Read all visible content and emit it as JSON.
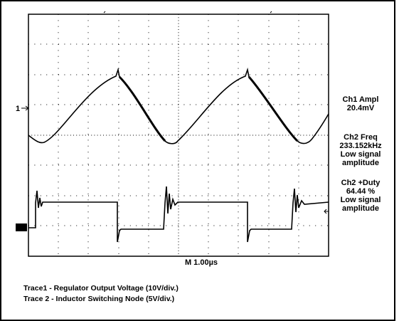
{
  "screen": {
    "ch1_marker": "1",
    "timebase": "M 1.00µs",
    "measurements": [
      {
        "lines": [
          "Ch1 Ampl",
          "20.4mV"
        ]
      },
      {
        "lines": [
          "Ch2 Freq",
          "233.152kHz",
          "Low signal",
          "amplitude"
        ]
      },
      {
        "lines": [
          "Ch2 +Duty",
          "64.44 %",
          "Low signal",
          "amplitude"
        ]
      }
    ],
    "captions": [
      "Trace1 - Regulator Output Voltage (10V/div.)",
      "Trace 2 - Inductor Switching Node  (5V/div.)"
    ]
  }
}
